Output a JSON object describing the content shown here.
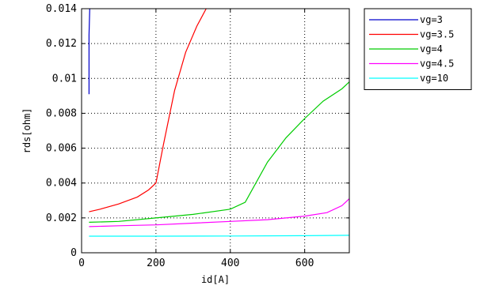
{
  "chart_data": {
    "type": "line",
    "title": "",
    "xlabel": "id[A]",
    "ylabel": "rds[ohm]",
    "xlim": [
      0,
      720
    ],
    "ylim": [
      0,
      0.014
    ],
    "x_ticks": [
      0,
      200,
      400,
      600
    ],
    "x_tick_labels": [
      "0",
      "200",
      "400",
      "600"
    ],
    "y_ticks": [
      0,
      0.002,
      0.004,
      0.006,
      0.008,
      0.01,
      0.012,
      0.014
    ],
    "y_tick_labels": [
      "0",
      "0.002",
      "0.004",
      "0.006",
      "0.008",
      "0.01",
      "0.012",
      "0.014"
    ],
    "grid": "dotted",
    "legend_position": "outside-right-top",
    "series": [
      {
        "name": "vg=3",
        "color": "#0000cc",
        "x": [
          20,
          20,
          22
        ],
        "y": [
          0.0091,
          0.0125,
          0.014
        ]
      },
      {
        "name": "vg=3.5",
        "color": "#ff0000",
        "x": [
          20,
          50,
          100,
          150,
          180,
          200,
          220,
          250,
          280,
          310,
          335
        ],
        "y": [
          0.00235,
          0.0025,
          0.0028,
          0.0032,
          0.0036,
          0.004,
          0.0062,
          0.0093,
          0.0115,
          0.013,
          0.014
        ]
      },
      {
        "name": "vg=4",
        "color": "#00cc00",
        "x": [
          20,
          100,
          200,
          300,
          400,
          440,
          500,
          550,
          600,
          650,
          700,
          720
        ],
        "y": [
          0.00175,
          0.0018,
          0.002,
          0.0022,
          0.0025,
          0.0029,
          0.0052,
          0.0066,
          0.0077,
          0.0087,
          0.0094,
          0.0098
        ]
      },
      {
        "name": "vg=4.5",
        "color": "#ff00ff",
        "x": [
          20,
          100,
          200,
          300,
          400,
          500,
          600,
          660,
          700,
          720
        ],
        "y": [
          0.0015,
          0.00155,
          0.0016,
          0.0017,
          0.0018,
          0.0019,
          0.0021,
          0.0023,
          0.0027,
          0.0031
        ]
      },
      {
        "name": "vg=10",
        "color": "#00ffff",
        "x": [
          20,
          200,
          400,
          600,
          720
        ],
        "y": [
          0.00095,
          0.00095,
          0.00096,
          0.00098,
          0.001
        ]
      }
    ]
  }
}
